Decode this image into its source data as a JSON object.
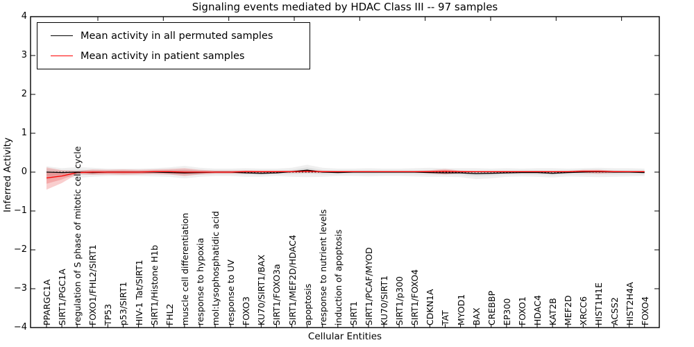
{
  "title": "Signaling events mediated by HDAC Class III -- 97 samples",
  "axes": {
    "xlabel": "Cellular Entities",
    "ylabel": "Inferred Activity",
    "ytick_labels": [
      "4",
      "3",
      "2",
      "1",
      "0",
      "−1",
      "−2",
      "−3",
      "−4"
    ]
  },
  "legend": {
    "entries": [
      {
        "label": "Mean activity in all permuted samples",
        "color": "#000000"
      },
      {
        "label": "Mean activity in patient samples",
        "color": "#ff0000"
      }
    ]
  },
  "chart_data": {
    "type": "line",
    "title": "Signaling events mediated by HDAC Class III -- 97 samples",
    "xlabel": "Cellular Entities",
    "ylabel": "Inferred Activity",
    "ylim": [
      -4,
      4
    ],
    "yticks": [
      4,
      3,
      2,
      1,
      0,
      -1,
      -2,
      -3,
      -4
    ],
    "grid": false,
    "legend_position": "upper-left",
    "categories": [
      "PPARGC1A",
      "SIRT1/PGC1A",
      "regulation of S phase of mitotic cell cycle",
      "FOXO1/FHL2/SIRT1",
      "TP53",
      "p53/SIRT1",
      "HIV-1 Tat/SIRT1",
      "SIRT1/Histone H1b",
      "FHL2",
      "muscle cell differentiation",
      "response to hypoxia",
      "mol:Lysophosphatidic acid",
      "response to UV",
      "FOXO3",
      "KU70/SIRT1/BAX",
      "SIRT1/FOXO3a",
      "SIRT1/MEF2D/HDAC4",
      "apoptosis",
      "response to nutrient levels",
      "induction of apoptosis",
      "SIRT1",
      "SIRT1/PCAF/MYOD",
      "KU70/SIRT1",
      "SIRT1/p300",
      "SIRT1/FOXO4",
      "CDKN1A",
      "TAT",
      "MYOD1",
      "BAX",
      "CREBBP",
      "EP300",
      "FOXO1",
      "HDAC4",
      "KAT2B",
      "MEF2D",
      "XRCC6",
      "HIST1H1E",
      "ACSS2",
      "HIST2H4A",
      "FOXO4"
    ],
    "series": [
      {
        "name": "Mean activity in all permuted samples",
        "color": "#000000",
        "line_style": "solid",
        "values": [
          0.0,
          -0.01,
          0.0,
          -0.01,
          0.0,
          0.0,
          0.0,
          0.0,
          -0.01,
          -0.02,
          -0.01,
          0.0,
          0.0,
          -0.02,
          -0.03,
          -0.02,
          0.01,
          0.05,
          0.0,
          -0.01,
          0.0,
          0.0,
          0.0,
          0.0,
          0.0,
          -0.01,
          -0.02,
          -0.02,
          -0.04,
          -0.03,
          -0.02,
          -0.01,
          -0.01,
          -0.03,
          -0.01,
          0.0,
          0.01,
          0.0,
          0.0,
          -0.01
        ]
      },
      {
        "name": "Mean activity in patient samples",
        "color": "#ff0000",
        "line_style": "solid",
        "values": [
          -0.15,
          -0.1,
          -0.01,
          0.0,
          0.0,
          0.0,
          0.0,
          0.01,
          0.01,
          0.0,
          0.0,
          0.0,
          0.0,
          0.01,
          0.01,
          0.01,
          0.01,
          0.02,
          0.01,
          0.01,
          0.01,
          0.01,
          0.01,
          0.01,
          0.01,
          0.01,
          0.02,
          0.01,
          0.01,
          0.01,
          0.01,
          0.01,
          0.01,
          0.01,
          0.01,
          0.02,
          0.02,
          0.01,
          0.01,
          0.01
        ]
      }
    ],
    "bands": [
      {
        "name": "permuted samples spread",
        "color": "#999999",
        "opacity": 0.16,
        "upper": [
          0.15,
          0.1,
          0.13,
          0.11,
          0.09,
          0.09,
          0.09,
          0.1,
          0.12,
          0.16,
          0.11,
          0.09,
          0.09,
          0.1,
          0.09,
          0.09,
          0.11,
          0.19,
          0.11,
          0.09,
          0.09,
          0.1,
          0.09,
          0.09,
          0.1,
          0.11,
          0.1,
          0.1,
          0.1,
          0.09,
          0.1,
          0.09,
          0.1,
          0.1,
          0.09,
          0.1,
          0.11,
          0.1,
          0.1,
          0.09
        ],
        "lower": [
          -0.2,
          -0.12,
          -0.15,
          -0.12,
          -0.1,
          -0.1,
          -0.1,
          -0.11,
          -0.12,
          -0.16,
          -0.12,
          -0.1,
          -0.1,
          -0.12,
          -0.12,
          -0.1,
          -0.12,
          -0.13,
          -0.12,
          -0.1,
          -0.1,
          -0.11,
          -0.1,
          -0.1,
          -0.11,
          -0.12,
          -0.12,
          -0.13,
          -0.18,
          -0.16,
          -0.12,
          -0.11,
          -0.12,
          -0.14,
          -0.11,
          -0.12,
          -0.13,
          -0.12,
          -0.11,
          -0.1
        ]
      },
      {
        "name": "patient samples spread",
        "color": "#e83a3a",
        "opacity": 0.25,
        "upper": [
          0.12,
          0.05,
          0.03,
          0.07,
          0.06,
          0.07,
          0.06,
          0.07,
          0.08,
          0.1,
          0.06,
          0.04,
          0.04,
          0.05,
          0.04,
          0.04,
          0.04,
          0.06,
          0.04,
          0.03,
          0.03,
          0.03,
          0.03,
          0.03,
          0.03,
          0.05,
          0.08,
          0.04,
          0.03,
          0.03,
          0.03,
          0.03,
          0.03,
          0.03,
          0.03,
          0.06,
          0.06,
          0.04,
          0.03,
          0.03
        ],
        "lower": [
          -0.45,
          -0.28,
          -0.05,
          -0.07,
          -0.06,
          -0.07,
          -0.06,
          -0.05,
          -0.06,
          -0.1,
          -0.06,
          -0.04,
          -0.04,
          -0.03,
          -0.02,
          -0.02,
          -0.02,
          -0.02,
          -0.02,
          -0.01,
          -0.01,
          -0.01,
          -0.01,
          -0.01,
          -0.01,
          -0.03,
          -0.06,
          -0.02,
          -0.01,
          -0.01,
          -0.01,
          -0.01,
          -0.01,
          -0.01,
          -0.01,
          -0.02,
          -0.04,
          -0.02,
          -0.01,
          -0.01
        ]
      }
    ],
    "zero_line": {
      "value": 0,
      "style": "dashed",
      "color": "#000000"
    }
  }
}
